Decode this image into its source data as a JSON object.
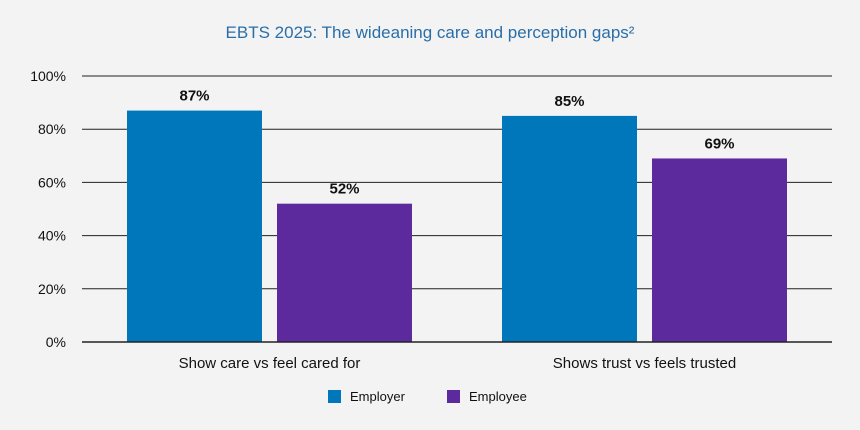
{
  "chart_data": {
    "type": "bar",
    "title": "EBTS 2025: The wideaning care and perception gaps²",
    "categories": [
      "Show care vs feel cared for",
      "Shows trust vs feels trusted"
    ],
    "series": [
      {
        "name": "Employer",
        "values": [
          87,
          85
        ],
        "labels": [
          "87%",
          "85%"
        ],
        "color": "#0077bb"
      },
      {
        "name": "Employee",
        "values": [
          52,
          69
        ],
        "labels": [
          "52%",
          "69%"
        ],
        "color": "#5c2a9d"
      }
    ],
    "ylim": [
      0,
      100
    ],
    "yticks": [
      0,
      20,
      40,
      60,
      80,
      100
    ],
    "ytick_labels": [
      "0%",
      "20%",
      "40%",
      "60%",
      "80%",
      "100%"
    ],
    "grid": true,
    "legend_position": "bottom-center",
    "xlabel": "",
    "ylabel": ""
  }
}
